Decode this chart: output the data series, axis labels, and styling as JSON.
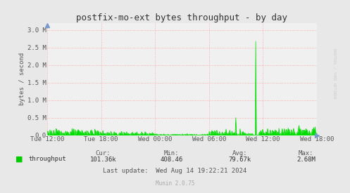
{
  "title": "postfix-mo-ext bytes throughput - by day",
  "ylabel": "bytes / second",
  "background_color": "#e8e8e8",
  "plot_bg_color": "#f0f0f0",
  "grid_color": "#ff8888",
  "line_color": "#00dd00",
  "fill_color": "#00dd00",
  "ytick_labels": [
    "0.0",
    "0.5 M",
    "1.0 M",
    "1.5 M",
    "2.0 M",
    "2.5 M",
    "3.0 M"
  ],
  "ytick_values": [
    0,
    500000,
    1000000,
    1500000,
    2000000,
    2500000,
    3000000
  ],
  "ylim": [
    0,
    3200000
  ],
  "xtick_labels": [
    "Tue 12:00",
    "Tue 18:00",
    "Wed 00:00",
    "Wed 06:00",
    "Wed 12:00",
    "Wed 18:00"
  ],
  "xtick_positions": [
    0,
    6,
    12,
    18,
    24,
    30
  ],
  "total_points": 30,
  "legend_label": "throughput",
  "legend_color": "#00cc00",
  "stats_cur": "101.36k",
  "stats_min": "408.46",
  "stats_avg": "79.67k",
  "stats_max": "2.68M",
  "last_update": "Last update:  Wed Aug 14 19:22:21 2024",
  "munin_version": "Munin 2.0.75",
  "rrdtool_text": "RRDTOOL / TOBI OETIKER",
  "title_fontsize": 9,
  "axis_fontsize": 6.5,
  "stats_fontsize": 6.5
}
